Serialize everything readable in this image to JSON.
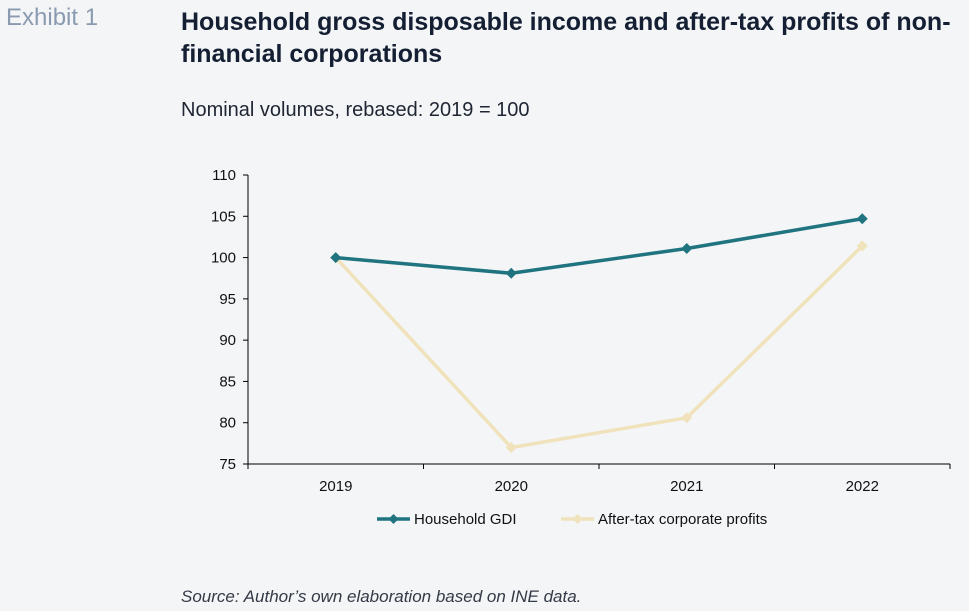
{
  "header": {
    "exhibit": "Exhibit 1",
    "title": "Household gross disposable income and after-tax profits of non-financial corporations",
    "subtitle": "Nominal volumes, rebased: 2019 = 100"
  },
  "footer": {
    "source": "Source: Author’s own elaboration based on INE data."
  },
  "chart_data": {
    "type": "line",
    "title": "Household gross disposable income and after-tax profits of non-financial corporations",
    "subtitle": "Nominal volumes, rebased: 2019 = 100",
    "xlabel": "",
    "ylabel": "",
    "categories": [
      "2019",
      "2020",
      "2021",
      "2022"
    ],
    "ylim": [
      75,
      110
    ],
    "yticks": [
      75,
      80,
      85,
      90,
      95,
      100,
      105,
      110
    ],
    "grid": false,
    "legend_position": "bottom",
    "series": [
      {
        "name": "Household GDI",
        "values": [
          100,
          98.1,
          101.1,
          104.7
        ],
        "color": "#1f7480",
        "marker": "diamond"
      },
      {
        "name": "After-tax corporate profits",
        "values": [
          100,
          77,
          80.6,
          101.4
        ],
        "color": "#f0e2bb",
        "marker": "diamond"
      }
    ]
  }
}
